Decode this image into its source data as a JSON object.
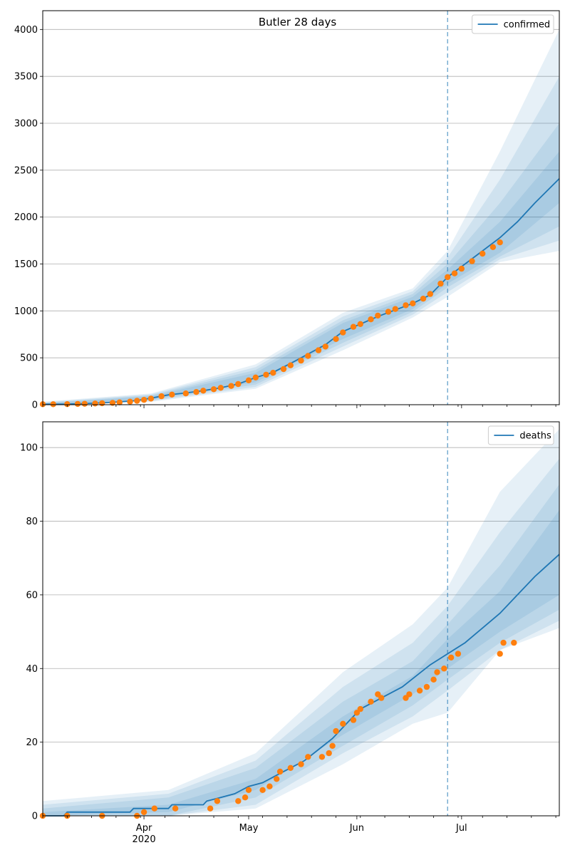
{
  "colors": {
    "model": "#1f77b4",
    "observed": "#ff7f0e",
    "band": "#1f77b4",
    "grid": "#b0b0b0",
    "vline": "#1f77b4"
  },
  "x_axis": {
    "start": "2020-03-03",
    "end": "2020-07-29",
    "major_ticks": [
      {
        "date": "2020-04-01",
        "label": "Apr",
        "sublabel": "2020"
      },
      {
        "date": "2020-05-01",
        "label": "May",
        "sublabel": ""
      },
      {
        "date": "2020-06-01",
        "label": "Jun",
        "sublabel": ""
      },
      {
        "date": "2020-07-01",
        "label": "Jul",
        "sublabel": ""
      }
    ],
    "forecast_date": "2020-06-27"
  },
  "chart_data": [
    {
      "type": "line",
      "title": "Butler 28 days",
      "ylim": [
        0,
        4200
      ],
      "yticks": [
        0,
        500,
        1000,
        1500,
        2000,
        2500,
        3000,
        3500,
        4000
      ],
      "grid": "horizontal",
      "legend": "top-right",
      "series": [
        {
          "name": "confirmed",
          "role": "model",
          "points": [
            [
              "2020-03-03",
              5
            ],
            [
              "2020-03-10",
              7
            ],
            [
              "2020-03-15",
              12
            ],
            [
              "2020-03-20",
              20
            ],
            [
              "2020-03-25",
              30
            ],
            [
              "2020-03-30",
              45
            ],
            [
              "2020-04-03",
              70
            ],
            [
              "2020-04-08",
              105
            ],
            [
              "2020-04-13",
              125
            ],
            [
              "2020-04-18",
              150
            ],
            [
              "2020-04-23",
              180
            ],
            [
              "2020-04-28",
              220
            ],
            [
              "2020-05-03",
              290
            ],
            [
              "2020-05-08",
              345
            ],
            [
              "2020-05-13",
              440
            ],
            [
              "2020-05-18",
              540
            ],
            [
              "2020-05-23",
              640
            ],
            [
              "2020-05-28",
              780
            ],
            [
              "2020-06-02",
              860
            ],
            [
              "2020-06-07",
              940
            ],
            [
              "2020-06-12",
              1010
            ],
            [
              "2020-06-17",
              1080
            ],
            [
              "2020-06-22",
              1170
            ],
            [
              "2020-06-27",
              1360
            ],
            [
              "2020-07-02",
              1500
            ],
            [
              "2020-07-07",
              1640
            ],
            [
              "2020-07-12",
              1780
            ],
            [
              "2020-07-17",
              1950
            ],
            [
              "2020-07-22",
              2150
            ],
            [
              "2020-07-29",
              2410
            ]
          ]
        },
        {
          "role": "observed",
          "points": [
            [
              "2020-03-03",
              5
            ],
            [
              "2020-03-06",
              5
            ],
            [
              "2020-03-10",
              6
            ],
            [
              "2020-03-13",
              8
            ],
            [
              "2020-03-15",
              10
            ],
            [
              "2020-03-18",
              13
            ],
            [
              "2020-03-20",
              16
            ],
            [
              "2020-03-23",
              20
            ],
            [
              "2020-03-25",
              25
            ],
            [
              "2020-03-28",
              33
            ],
            [
              "2020-03-30",
              42
            ],
            [
              "2020-04-01",
              52
            ],
            [
              "2020-04-03",
              65
            ],
            [
              "2020-04-06",
              90
            ],
            [
              "2020-04-09",
              108
            ],
            [
              "2020-04-13",
              120
            ],
            [
              "2020-04-16",
              135
            ],
            [
              "2020-04-18",
              150
            ],
            [
              "2020-04-21",
              165
            ],
            [
              "2020-04-23",
              180
            ],
            [
              "2020-04-26",
              200
            ],
            [
              "2020-04-28",
              220
            ],
            [
              "2020-05-01",
              260
            ],
            [
              "2020-05-03",
              290
            ],
            [
              "2020-05-06",
              320
            ],
            [
              "2020-05-08",
              340
            ],
            [
              "2020-05-11",
              380
            ],
            [
              "2020-05-13",
              420
            ],
            [
              "2020-05-16",
              470
            ],
            [
              "2020-05-18",
              520
            ],
            [
              "2020-05-21",
              580
            ],
            [
              "2020-05-23",
              620
            ],
            [
              "2020-05-26",
              700
            ],
            [
              "2020-05-28",
              770
            ],
            [
              "2020-05-31",
              830
            ],
            [
              "2020-06-02",
              860
            ],
            [
              "2020-06-05",
              910
            ],
            [
              "2020-06-07",
              950
            ],
            [
              "2020-06-10",
              990
            ],
            [
              "2020-06-12",
              1020
            ],
            [
              "2020-06-15",
              1060
            ],
            [
              "2020-06-17",
              1080
            ],
            [
              "2020-06-20",
              1130
            ],
            [
              "2020-06-22",
              1180
            ],
            [
              "2020-06-25",
              1290
            ],
            [
              "2020-06-27",
              1360
            ],
            [
              "2020-06-29",
              1400
            ],
            [
              "2020-07-01",
              1450
            ],
            [
              "2020-07-04",
              1530
            ],
            [
              "2020-07-07",
              1610
            ],
            [
              "2020-07-10",
              1680
            ],
            [
              "2020-07-12",
              1730
            ]
          ]
        }
      ],
      "bands": [
        {
          "points": [
            [
              "2020-03-03",
              0,
              12
            ],
            [
              "2020-04-03",
              55,
              90
            ],
            [
              "2020-05-03",
              240,
              340
            ],
            [
              "2020-05-28",
              700,
              870
            ],
            [
              "2020-06-17",
              1020,
              1150
            ],
            [
              "2020-06-27",
              1290,
              1440
            ],
            [
              "2020-07-12",
              1620,
              1950
            ],
            [
              "2020-07-29",
              2150,
              2700
            ]
          ]
        },
        {
          "points": [
            [
              "2020-03-03",
              0,
              18
            ],
            [
              "2020-04-03",
              45,
              100
            ],
            [
              "2020-05-03",
              215,
              370
            ],
            [
              "2020-05-28",
              660,
              900
            ],
            [
              "2020-06-17",
              990,
              1180
            ],
            [
              "2020-06-27",
              1250,
              1500
            ],
            [
              "2020-07-12",
              1580,
              2150
            ],
            [
              "2020-07-29",
              1900,
              3000
            ]
          ]
        },
        {
          "points": [
            [
              "2020-03-03",
              0,
              25
            ],
            [
              "2020-04-03",
              38,
              110
            ],
            [
              "2020-05-03",
              190,
              400
            ],
            [
              "2020-05-28",
              620,
              940
            ],
            [
              "2020-06-17",
              960,
              1210
            ],
            [
              "2020-06-27",
              1200,
              1570
            ],
            [
              "2020-07-12",
              1550,
              2400
            ],
            [
              "2020-07-29",
              1750,
              3500
            ]
          ]
        },
        {
          "points": [
            [
              "2020-03-03",
              0,
              32
            ],
            [
              "2020-04-03",
              30,
              120
            ],
            [
              "2020-05-03",
              170,
              430
            ],
            [
              "2020-05-28",
              580,
              980
            ],
            [
              "2020-06-17",
              930,
              1240
            ],
            [
              "2020-06-27",
              1150,
              1640
            ],
            [
              "2020-07-12",
              1520,
              2700
            ],
            [
              "2020-07-29",
              1640,
              4000
            ]
          ]
        }
      ]
    },
    {
      "type": "line",
      "title": "",
      "ylim": [
        0,
        107
      ],
      "yticks": [
        0,
        20,
        40,
        60,
        80,
        100
      ],
      "grid": "horizontal",
      "legend": "top-right",
      "series": [
        {
          "name": "deaths",
          "role": "model",
          "points": [
            [
              "2020-03-03",
              0
            ],
            [
              "2020-03-09",
              0
            ],
            [
              "2020-03-10",
              1
            ],
            [
              "2020-03-28",
              1
            ],
            [
              "2020-03-29",
              2
            ],
            [
              "2020-04-08",
              2
            ],
            [
              "2020-04-09",
              3
            ],
            [
              "2020-04-18",
              3
            ],
            [
              "2020-04-19",
              4
            ],
            [
              "2020-04-23",
              5
            ],
            [
              "2020-04-27",
              6
            ],
            [
              "2020-05-01",
              8
            ],
            [
              "2020-05-05",
              9
            ],
            [
              "2020-05-09",
              11
            ],
            [
              "2020-05-13",
              13
            ],
            [
              "2020-05-17",
              15
            ],
            [
              "2020-05-21",
              18
            ],
            [
              "2020-05-25",
              21
            ],
            [
              "2020-05-29",
              25
            ],
            [
              "2020-06-02",
              29
            ],
            [
              "2020-06-06",
              31
            ],
            [
              "2020-06-10",
              33
            ],
            [
              "2020-06-14",
              35
            ],
            [
              "2020-06-18",
              38
            ],
            [
              "2020-06-22",
              41
            ],
            [
              "2020-06-27",
              44
            ],
            [
              "2020-07-02",
              47
            ],
            [
              "2020-07-07",
              51
            ],
            [
              "2020-07-12",
              55
            ],
            [
              "2020-07-17",
              60
            ],
            [
              "2020-07-22",
              65
            ],
            [
              "2020-07-29",
              71
            ]
          ]
        },
        {
          "role": "observed",
          "points": [
            [
              "2020-03-03",
              0
            ],
            [
              "2020-03-10",
              0
            ],
            [
              "2020-03-20",
              0
            ],
            [
              "2020-03-30",
              0
            ],
            [
              "2020-04-01",
              1
            ],
            [
              "2020-04-04",
              2
            ],
            [
              "2020-04-10",
              2
            ],
            [
              "2020-04-20",
              2
            ],
            [
              "2020-04-22",
              4
            ],
            [
              "2020-04-28",
              4
            ],
            [
              "2020-04-30",
              5
            ],
            [
              "2020-05-01",
              7
            ],
            [
              "2020-05-05",
              7
            ],
            [
              "2020-05-07",
              8
            ],
            [
              "2020-05-09",
              10
            ],
            [
              "2020-05-10",
              12
            ],
            [
              "2020-05-13",
              13
            ],
            [
              "2020-05-16",
              14
            ],
            [
              "2020-05-18",
              16
            ],
            [
              "2020-05-22",
              16
            ],
            [
              "2020-05-24",
              17
            ],
            [
              "2020-05-25",
              19
            ],
            [
              "2020-05-26",
              23
            ],
            [
              "2020-05-28",
              25
            ],
            [
              "2020-05-31",
              26
            ],
            [
              "2020-06-01",
              28
            ],
            [
              "2020-06-02",
              29
            ],
            [
              "2020-06-05",
              31
            ],
            [
              "2020-06-07",
              33
            ],
            [
              "2020-06-08",
              32
            ],
            [
              "2020-06-15",
              32
            ],
            [
              "2020-06-16",
              33
            ],
            [
              "2020-06-19",
              34
            ],
            [
              "2020-06-21",
              35
            ],
            [
              "2020-06-23",
              37
            ],
            [
              "2020-06-24",
              39
            ],
            [
              "2020-06-26",
              40
            ],
            [
              "2020-06-28",
              43
            ],
            [
              "2020-06-30",
              44
            ],
            [
              "2020-07-12",
              44
            ],
            [
              "2020-07-13",
              47
            ],
            [
              "2020-07-16",
              47
            ]
          ]
        }
      ],
      "bands": [
        {
          "points": [
            [
              "2020-03-03",
              0,
              1
            ],
            [
              "2020-04-08",
              1,
              3
            ],
            [
              "2020-05-03",
              7,
              10
            ],
            [
              "2020-05-28",
              22,
              27
            ],
            [
              "2020-06-17",
              33,
              38
            ],
            [
              "2020-06-27",
              40,
              48
            ],
            [
              "2020-07-12",
              50,
              61
            ],
            [
              "2020-07-29",
              60,
              83
            ]
          ]
        },
        {
          "points": [
            [
              "2020-03-03",
              0,
              2
            ],
            [
              "2020-04-08",
              0,
              5
            ],
            [
              "2020-05-03",
              5,
              13
            ],
            [
              "2020-05-28",
              19,
              31
            ],
            [
              "2020-06-17",
              30,
              42
            ],
            [
              "2020-06-27",
              37,
              52
            ],
            [
              "2020-07-12",
              47,
              68
            ],
            [
              "2020-07-29",
              56,
              90
            ]
          ]
        },
        {
          "points": [
            [
              "2020-03-03",
              0,
              3
            ],
            [
              "2020-04-08",
              0,
              6
            ],
            [
              "2020-05-03",
              3,
              15
            ],
            [
              "2020-05-28",
              17,
              35
            ],
            [
              "2020-06-17",
              27,
              47
            ],
            [
              "2020-06-27",
              34,
              57
            ],
            [
              "2020-07-12",
              45,
              77
            ],
            [
              "2020-07-29",
              53,
              97
            ]
          ]
        },
        {
          "points": [
            [
              "2020-03-03",
              0,
              4
            ],
            [
              "2020-04-08",
              0,
              7
            ],
            [
              "2020-05-03",
              2,
              17
            ],
            [
              "2020-05-28",
              14,
              39
            ],
            [
              "2020-06-17",
              25,
              52
            ],
            [
              "2020-06-27",
              28,
              62
            ],
            [
              "2020-07-12",
              45,
              88
            ],
            [
              "2020-07-29",
              51,
              105
            ]
          ]
        }
      ]
    }
  ]
}
